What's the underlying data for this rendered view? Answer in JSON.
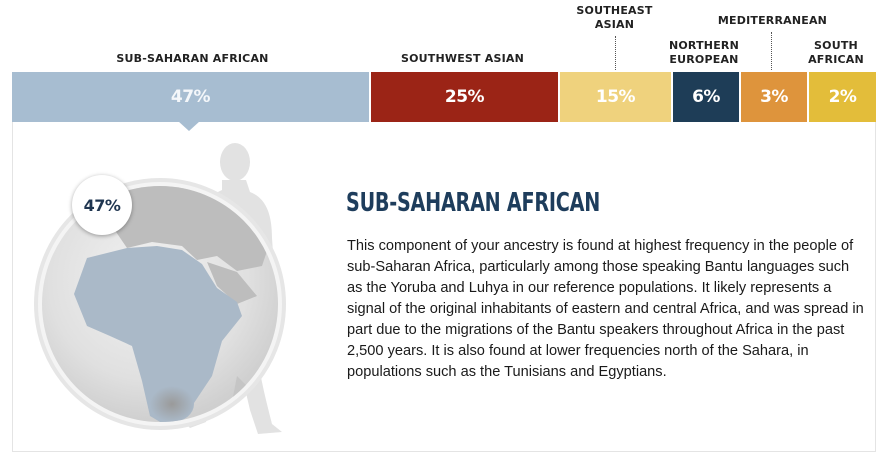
{
  "labels": {
    "sub_saharan": "SUB-SAHARAN AFRICAN",
    "southwest": "SOUTHWEST ASIAN",
    "southeast_line1": "SOUTHEAST",
    "southeast_line2": "ASIAN",
    "northern_line1": "NORTHERN",
    "northern_line2": "EUROPEAN",
    "mediterranean": "MEDITERRANEAN",
    "south_african_line1": "SOUTH",
    "south_african_line2": "AFRICAN"
  },
  "segments": [
    {
      "name": "Sub-Saharan African",
      "pct": "47%",
      "value": 47,
      "color": "#a7bdd1"
    },
    {
      "name": "Southwest Asian",
      "pct": "25%",
      "value": 25,
      "color": "#9b2416"
    },
    {
      "name": "Southeast Asian",
      "pct": "15%",
      "value": 15,
      "color": "#efd27d"
    },
    {
      "name": "Northern European",
      "pct": "6%",
      "value": 6,
      "color": "#1e3d57"
    },
    {
      "name": "Mediterranean",
      "pct": "3%",
      "value": 3,
      "color": "#de943c"
    },
    {
      "name": "South African",
      "pct": "2%",
      "value": 2,
      "color": "#e3bd3a"
    }
  ],
  "detail": {
    "badge": "47%",
    "title": "SUB-SAHARAN AFRICAN",
    "description": "This component of your ancestry is found at highest frequency in the people of sub-Saharan Africa, particularly among those speaking Bantu languages such as the Yoruba and Luhya in our reference populations. It likely represents a signal of the original inhabitants of eastern and central Africa, and was spread in part due to the migrations of the Bantu speakers throughout Africa in the past 2,500 years. It is also found at lower frequencies north of the Sahara, in populations such as the Tunisians and Egyptians."
  }
}
